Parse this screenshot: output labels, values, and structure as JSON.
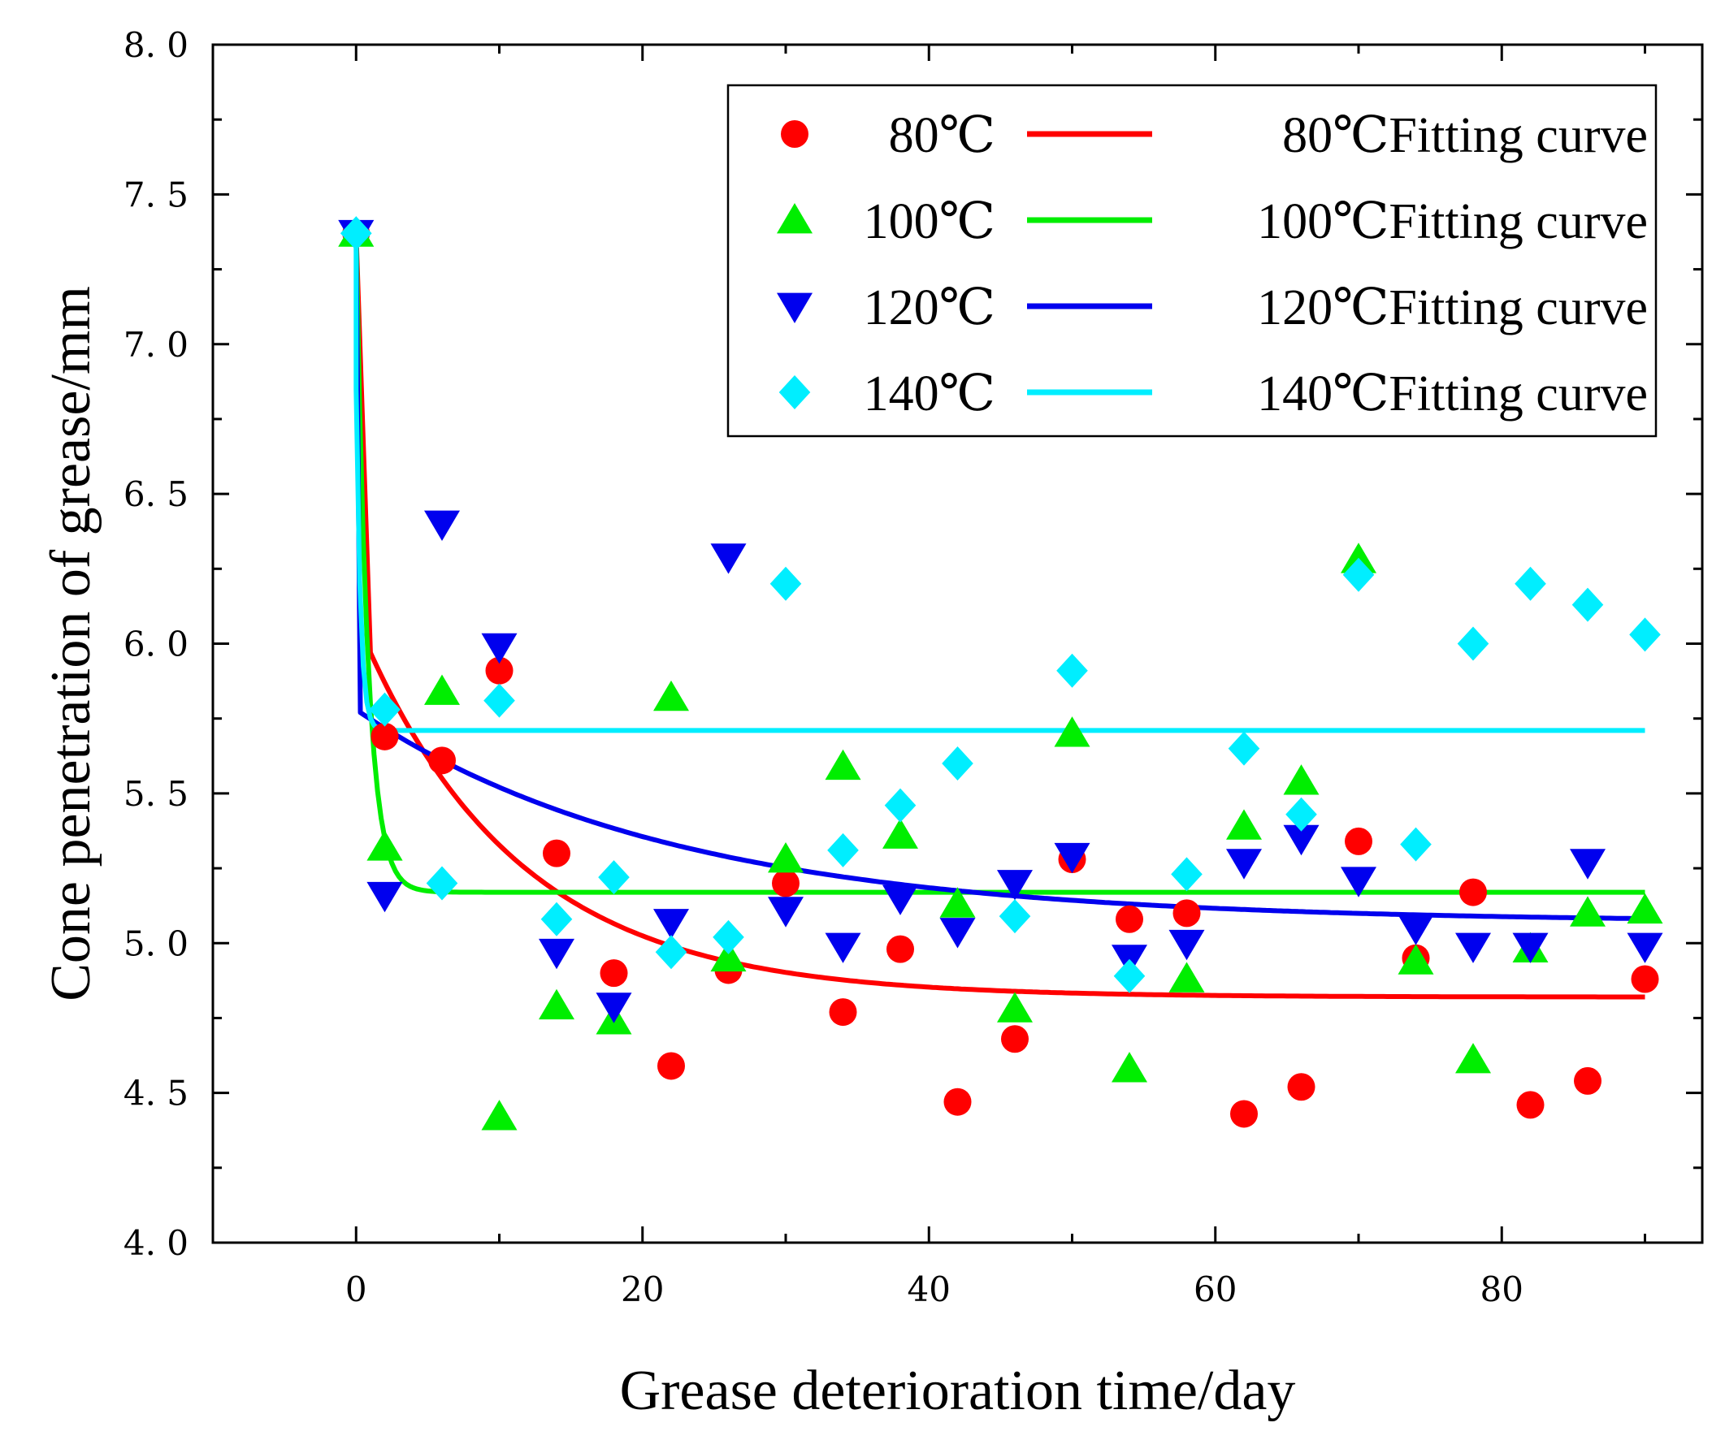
{
  "chart_data": {
    "type": "scatter",
    "title": "",
    "xlabel": "Grease deterioration time/day",
    "ylabel": "Cone penetration of grease/mm",
    "xlim": [
      -10,
      94
    ],
    "ylim": [
      4.0,
      8.0
    ],
    "x_ticks": [
      0,
      20,
      40,
      60,
      80
    ],
    "x_tick_labels": [
      "0",
      "20",
      "40",
      "60",
      "80"
    ],
    "y_ticks": [
      4.0,
      4.5,
      5.0,
      5.5,
      6.0,
      6.5,
      7.0,
      7.5,
      8.0
    ],
    "y_tick_labels": [
      "4. 0",
      "4. 5",
      "5. 0",
      "5. 5",
      "6. 0",
      "6. 5",
      "7. 0",
      "7. 5",
      "8. 0"
    ],
    "grid": false,
    "legend_position": "top-right",
    "series": [
      {
        "name": "80℃",
        "fit_name": "80℃Fitting curve",
        "marker": "circle",
        "color": "#ff0000",
        "x": [
          0,
          2,
          6,
          10,
          14,
          18,
          22,
          26,
          30,
          34,
          38,
          42,
          46,
          50,
          54,
          58,
          62,
          66,
          70,
          74,
          78,
          82,
          86,
          90
        ],
        "y": [
          7.37,
          5.69,
          5.61,
          5.91,
          5.3,
          4.9,
          4.59,
          4.91,
          5.2,
          4.77,
          4.98,
          4.47,
          4.68,
          5.28,
          5.08,
          5.1,
          4.43,
          4.52,
          5.34,
          4.95,
          5.17,
          4.46,
          4.54,
          4.88
        ],
        "fit": {
          "model": "exponential_decay",
          "x0": 1,
          "y0": 5.97,
          "y_inf": 4.82,
          "tau": 11.0
        }
      },
      {
        "name": "100℃",
        "fit_name": "100℃Fitting curve",
        "marker": "triangle-up",
        "color": "#00ee00",
        "x": [
          0,
          2,
          6,
          10,
          14,
          18,
          22,
          26,
          30,
          34,
          38,
          42,
          46,
          50,
          54,
          58,
          62,
          66,
          70,
          74,
          78,
          82,
          86,
          90
        ],
        "y": [
          7.37,
          5.32,
          5.84,
          4.42,
          4.79,
          4.74,
          5.82,
          4.95,
          5.28,
          5.59,
          5.36,
          5.13,
          4.78,
          5.7,
          4.58,
          4.88,
          5.39,
          5.54,
          6.28,
          4.94,
          4.61,
          4.98,
          5.1,
          5.11
        ],
        "fit": {
          "model": "exponential_decay",
          "x0": 0,
          "y0": 7.37,
          "y_inf": 5.17,
          "tau": 0.8
        }
      },
      {
        "name": "120℃",
        "fit_name": "120℃Fitting curve",
        "marker": "triangle-down",
        "color": "#0000ee",
        "x": [
          0,
          2,
          6,
          10,
          14,
          18,
          22,
          26,
          30,
          34,
          38,
          42,
          46,
          50,
          54,
          58,
          62,
          66,
          70,
          74,
          78,
          82,
          86,
          90
        ],
        "y": [
          7.37,
          5.16,
          6.4,
          5.99,
          4.97,
          4.79,
          5.07,
          6.29,
          5.11,
          4.99,
          5.15,
          5.04,
          5.2,
          5.29,
          4.95,
          5.0,
          5.27,
          5.35,
          5.21,
          5.05,
          4.99,
          4.99,
          5.27,
          4.99
        ],
        "fit": {
          "model": "exponential_decay",
          "x0": 0.3,
          "y0": 5.77,
          "y_inf": 5.07,
          "tau": 22.0
        }
      },
      {
        "name": "140℃",
        "fit_name": "140℃Fitting curve",
        "marker": "diamond",
        "color": "#00eeff",
        "x": [
          0,
          2,
          6,
          10,
          14,
          18,
          22,
          26,
          30,
          34,
          38,
          42,
          46,
          50,
          54,
          58,
          62,
          66,
          70,
          74,
          78,
          82,
          86,
          90
        ],
        "y": [
          7.37,
          5.78,
          5.2,
          5.81,
          5.08,
          5.22,
          4.97,
          5.02,
          6.2,
          5.31,
          5.46,
          5.6,
          5.09,
          5.91,
          4.89,
          5.23,
          5.65,
          5.43,
          6.23,
          5.33,
          6.0,
          6.2,
          6.13,
          6.03
        ],
        "fit": {
          "model": "exponential_decay",
          "x0": 0,
          "y0": 6.85,
          "y_inf": 5.71,
          "tau": 0.3
        }
      }
    ]
  }
}
